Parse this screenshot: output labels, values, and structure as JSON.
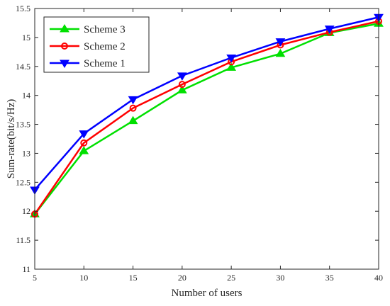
{
  "chart_data": {
    "type": "line",
    "title": "",
    "xlabel": "Number of users",
    "ylabel": "Sum-rate(bit/s/Hz)",
    "x": [
      5,
      10,
      15,
      20,
      25,
      30,
      35,
      40
    ],
    "xlim": [
      5,
      40
    ],
    "ylim": [
      11,
      15.5
    ],
    "xticks": [
      "5",
      "10",
      "15",
      "20",
      "25",
      "30",
      "35",
      "40"
    ],
    "yticks": [
      "11",
      "11.5",
      "12",
      "12.5",
      "13",
      "13.5",
      "14",
      "14.5",
      "15",
      "15.5"
    ],
    "grid": false,
    "legend_position": "top-left",
    "series": [
      {
        "name": "Scheme 3",
        "color": "#00e000",
        "marker": "triangle-up",
        "values": [
          11.95,
          13.04,
          13.56,
          14.09,
          14.48,
          14.72,
          15.08,
          15.24
        ]
      },
      {
        "name": "Scheme 2",
        "color": "#ff0000",
        "marker": "circle",
        "values": [
          11.95,
          13.18,
          13.78,
          14.19,
          14.58,
          14.87,
          15.09,
          15.28
        ]
      },
      {
        "name": "Scheme 1",
        "color": "#0000ff",
        "marker": "triangle-down",
        "values": [
          12.37,
          13.34,
          13.93,
          14.34,
          14.65,
          14.93,
          15.15,
          15.35
        ]
      }
    ]
  }
}
